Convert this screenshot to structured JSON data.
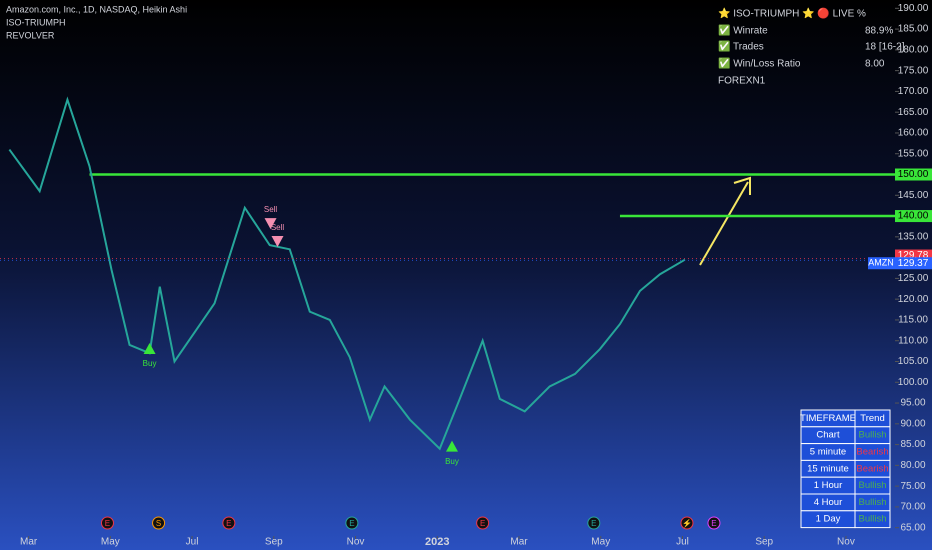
{
  "chart_data": {
    "type": "line",
    "title": "Amazon.com, Inc., 1D, NASDAQ, Heikin Ashi",
    "indicators": [
      "ISO-TRIUMPH",
      "REVOLVER"
    ],
    "x": [
      -0.47,
      0.27,
      0.95,
      1.49,
      2.03,
      2.47,
      2.96,
      3.21,
      3.57,
      4.06,
      4.55,
      5.29,
      5.9,
      6.39,
      6.88,
      7.37,
      7.86,
      8.35,
      8.71,
      9.33,
      10.06,
      10.55,
      11.11,
      11.53,
      12.14,
      12.75,
      13.37,
      13.98,
      14.47,
      14.96,
      15.45,
      16.06
    ],
    "series": [
      {
        "name": "AMZN",
        "color": "#26a69a",
        "values": [
          156,
          146,
          168,
          152,
          127,
          109,
          107,
          123,
          105,
          112,
          119,
          142,
          133,
          132,
          117,
          115,
          106,
          91,
          99,
          91,
          84,
          96,
          110,
          96,
          93,
          99,
          102,
          108,
          114,
          122,
          126,
          129.5
        ]
      }
    ],
    "xlim": [
      -0.7,
      21.2
    ],
    "xticks": [
      {
        "value": 0,
        "label": "Mar"
      },
      {
        "value": 2,
        "label": "May"
      },
      {
        "value": 4,
        "label": "Jul"
      },
      {
        "value": 6,
        "label": "Sep"
      },
      {
        "value": 8,
        "label": "Nov"
      },
      {
        "value": 10,
        "label": "2023"
      },
      {
        "value": 12,
        "label": "Mar"
      },
      {
        "value": 14,
        "label": "May"
      },
      {
        "value": 16,
        "label": "Jul"
      },
      {
        "value": 18,
        "label": "Sep"
      },
      {
        "value": 20,
        "label": "Nov"
      }
    ],
    "ylim": [
      63,
      192
    ],
    "yticks": [
      {
        "value": 65,
        "label": "65.00"
      },
      {
        "value": 70,
        "label": "70.00"
      },
      {
        "value": 75,
        "label": "75.00"
      },
      {
        "value": 80,
        "label": "80.00"
      },
      {
        "value": 85,
        "label": "85.00"
      },
      {
        "value": 90,
        "label": "90.00"
      },
      {
        "value": 95,
        "label": "95.00"
      },
      {
        "value": 100,
        "label": "100.00"
      },
      {
        "value": 105,
        "label": "105.00"
      },
      {
        "value": 110,
        "label": "110.00"
      },
      {
        "value": 115,
        "label": "115.00"
      },
      {
        "value": 120,
        "label": "120.00"
      },
      {
        "value": 125,
        "label": "125.00"
      },
      {
        "value": 130,
        "label": "130.00"
      },
      {
        "value": 135,
        "label": "135.00"
      },
      {
        "value": 140,
        "label": "140.00"
      },
      {
        "value": 145,
        "label": "145.00"
      },
      {
        "value": 150,
        "label": "150.00"
      },
      {
        "value": 155,
        "label": "155.00"
      },
      {
        "value": 160,
        "label": "160.00"
      },
      {
        "value": 165,
        "label": "165.00"
      },
      {
        "value": 170,
        "label": "170.00"
      },
      {
        "value": 175,
        "label": "175.00"
      },
      {
        "value": 180,
        "label": "180.00"
      },
      {
        "value": 185,
        "label": "185.00"
      },
      {
        "value": 190,
        "label": "190.00"
      }
    ],
    "levels": [
      {
        "value": 150,
        "label": "150.00",
        "from": 1.49
      },
      {
        "value": 140,
        "label": "140.00",
        "from": 14.47
      }
    ],
    "price_tags": [
      {
        "value": 129.78,
        "label": "129.78",
        "color": "#f23645"
      },
      {
        "value": 129.37,
        "label": "129.37",
        "name": "AMZN",
        "color": "#2962ff"
      }
    ],
    "signals": [
      {
        "label": "Buy",
        "x": 2.96,
        "value": 108,
        "dir": "up"
      },
      {
        "label": "Sell",
        "x": 5.92,
        "value": 138.3,
        "dir": "down"
      },
      {
        "label": "Sell",
        "x": 6.09,
        "value": 134,
        "dir": "down"
      },
      {
        "label": "Buy",
        "x": 10.36,
        "value": 84.5,
        "dir": "up"
      }
    ],
    "events": [
      {
        "label": "E",
        "x": 1.93,
        "color": "#f23645"
      },
      {
        "label": "S",
        "x": 3.18,
        "color": "#ff9800"
      },
      {
        "label": "E",
        "x": 4.9,
        "color": "#f23645"
      },
      {
        "label": "E",
        "x": 7.91,
        "color": "#26a69a"
      },
      {
        "label": "E",
        "x": 11.11,
        "color": "#f23645"
      },
      {
        "label": "E",
        "x": 13.83,
        "color": "#26a69a"
      },
      {
        "label": "⚡",
        "x": 16.11,
        "color": "#f23645"
      },
      {
        "label": "E",
        "x": 16.77,
        "color": "#e040fb"
      }
    ]
  },
  "stats_panel": {
    "title": "⭐ ISO-TRIUMPH ⭐  🔴 LIVE %",
    "rows": [
      [
        "✅ Winrate",
        "88.9%"
      ],
      [
        "✅ Trades",
        "18 [16-2]"
      ],
      [
        "✅ Win/Loss Ratio",
        "8.00"
      ]
    ],
    "footer": "FOREXN1"
  },
  "trend_table": {
    "header": [
      "TIMEFRAME",
      "Trend"
    ],
    "rows": [
      [
        "Chart",
        "Bullish"
      ],
      [
        "5 minute",
        "Bearish"
      ],
      [
        "15 minute",
        "Bearish"
      ],
      [
        "1 Hour",
        "Bullish"
      ],
      [
        "4 Hour",
        "Bullish"
      ],
      [
        "1 Day",
        "Bullish"
      ]
    ]
  }
}
